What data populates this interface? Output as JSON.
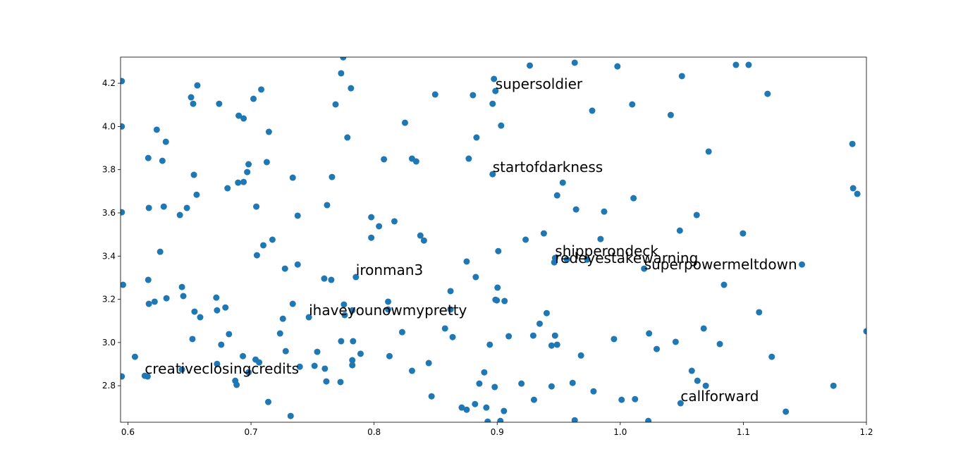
{
  "chart_data": {
    "type": "scatter",
    "color": "#1f77b4",
    "xlim": [
      0.594,
      1.2
    ],
    "ylim": [
      2.631,
      4.321
    ],
    "xticks": [
      0.6,
      0.7,
      0.8,
      0.9,
      {
        "value": 1.0,
        "label": "1.0"
      },
      1.1,
      1.2
    ],
    "yticks": [
      2.8,
      {
        "value": 3.0,
        "label": "3.0"
      },
      3.2,
      3.4,
      3.6,
      3.8,
      {
        "value": 4.0,
        "label": "4.0"
      },
      4.2
    ],
    "x": [
      0.595,
      0.595,
      0.595,
      0.596,
      0.595,
      0.6057,
      0.6137,
      0.616,
      0.6165,
      0.617,
      0.6165,
      0.617,
      0.6217,
      0.6234,
      0.6262,
      0.628,
      0.6291,
      0.6308,
      0.6313,
      0.6422,
      0.6439,
      0.6439,
      0.645,
      0.6479,
      0.6513,
      0.653,
      0.6536,
      0.6524,
      0.6541,
      0.6558,
      0.6564,
      0.6587,
      0.6741,
      0.6718,
      0.6724,
      0.6724,
      0.6758,
      0.6792,
      0.6809,
      0.6821,
      0.6872,
      0.6883,
      0.69,
      0.6895,
      0.694,
      0.694,
      0.6934,
      0.6969,
      0.698,
      0.698,
      0.702,
      0.7037,
      0.7043,
      0.7048,
      0.7066,
      0.7083,
      0.71,
      0.7128,
      0.7145,
      0.714,
      0.7174,
      0.7236,
      0.7259,
      0.7276,
      0.7282,
      0.7322,
      0.7339,
      0.7339,
      0.7379,
      0.7379,
      0.7396,
      0.747,
      0.7516,
      0.7538,
      0.7595,
      0.76,
      0.7612,
      0.7618,
      0.7652,
      0.7658,
      0.7687,
      0.7732,
      0.7727,
      0.7732,
      0.7749,
      0.7755,
      0.7761,
      0.7783,
      0.7812,
      0.7823,
      0.7823,
      0.7823,
      0.7829,
      0.7852,
      0.789,
      0.7977,
      0.7977,
      0.804,
      0.808,
      0.8114,
      0.8114,
      0.8125,
      0.8165,
      0.8228,
      0.8251,
      0.8308,
      0.8308,
      0.8342,
      0.8376,
      0.8405,
      0.8444,
      0.8467,
      0.8496,
      0.8576,
      0.8621,
      0.8621,
      0.8638,
      0.8712,
      0.8752,
      0.8752,
      0.8769,
      0.8803,
      0.882,
      0.8826,
      0.8832,
      0.8855,
      0.8895,
      0.8912,
      0.8923,
      0.894,
      0.8963,
      0.8963,
      0.8974,
      0.8986,
      0.898,
      0.8986,
      0.8997,
      0.9003,
      0.9009,
      0.9026,
      0.9032,
      0.9055,
      0.906,
      0.9094,
      0.9197,
      0.9231,
      0.9265,
      0.9293,
      0.9299,
      0.9345,
      0.9379,
      0.9402,
      0.9442,
      0.9442,
      0.9464,
      0.947,
      0.947,
      0.9487,
      0.9487,
      0.9533,
      0.9567,
      0.963,
      0.9613,
      0.963,
      0.9641,
      0.9681,
      0.9732,
      0.9772,
      0.9783,
      0.984,
      0.9869,
      0.9949,
      0.9977,
      1.0011,
      1.0097,
      1.0108,
      1.012,
      1.0194,
      1.0228,
      1.0234,
      1.0296,
      1.041,
      1.045,
      1.0484,
      1.049,
      1.0501,
      1.0581,
      1.0621,
      1.0627,
      1.0678,
      1.0695,
      1.0718,
      1.0809,
      1.0843,
      1.094,
      1.0997,
      1.1043,
      1.1128,
      1.1197,
      1.1231,
      1.1345,
      1.1476,
      1.1732,
      1.1886,
      1.1892,
      1.1926,
      1.2
    ],
    "values": [
      4.21,
      4.0,
      3.603,
      3.267,
      2.843,
      2.934,
      2.846,
      2.843,
      3.854,
      3.623,
      3.29,
      3.179,
      3.189,
      3.985,
      3.42,
      3.841,
      3.629,
      3.929,
      3.205,
      3.59,
      3.257,
      2.875,
      3.215,
      3.623,
      4.135,
      4.105,
      3.776,
      3.016,
      3.143,
      3.684,
      4.19,
      3.117,
      4.105,
      3.208,
      2.901,
      3.149,
      2.99,
      3.162,
      3.714,
      3.039,
      2.823,
      2.804,
      4.05,
      3.74,
      4.037,
      3.743,
      2.937,
      3.789,
      2.862,
      3.825,
      4.128,
      2.921,
      3.629,
      3.404,
      2.908,
      4.171,
      3.45,
      3.835,
      3.975,
      2.725,
      3.476,
      3.042,
      3.11,
      3.342,
      2.96,
      2.66,
      3.763,
      3.179,
      3.361,
      3.587,
      2.888,
      3.117,
      2.892,
      2.957,
      3.296,
      2.879,
      2.82,
      3.636,
      3.29,
      3.766,
      4.102,
      4.246,
      2.817,
      3.006,
      4.32,
      3.176,
      3.127,
      3.949,
      4.177,
      3.149,
      2.918,
      2.895,
      3.006,
      3.303,
      2.948,
      3.58,
      3.485,
      3.538,
      3.848,
      3.189,
      3.153,
      2.937,
      3.561,
      3.048,
      4.017,
      3.851,
      2.869,
      3.838,
      3.495,
      3.472,
      2.905,
      2.751,
      4.148,
      3.065,
      3.238,
      3.153,
      3.025,
      2.699,
      2.689,
      3.375,
      3.851,
      4.145,
      2.715,
      3.303,
      3.949,
      2.81,
      2.862,
      2.699,
      2.634,
      2.99,
      4.105,
      3.779,
      4.22,
      4.164,
      2.794,
      3.198,
      3.195,
      3.254,
      3.423,
      2.637,
      4.004,
      2.683,
      3.192,
      3.029,
      2.81,
      3.476,
      4.282,
      3.032,
      2.735,
      3.087,
      3.505,
      3.136,
      2.986,
      2.797,
      3.371,
      3.391,
      3.032,
      2.99,
      3.681,
      3.74,
      3.384,
      4.295,
      2.813,
      2.64,
      3.616,
      2.94,
      3.384,
      4.073,
      2.774,
      3.479,
      3.606,
      3.016,
      4.278,
      2.735,
      4.102,
      3.668,
      2.738,
      3.342,
      2.637,
      3.042,
      2.97,
      4.053,
      3.003,
      3.518,
      2.719,
      4.233,
      2.869,
      3.59,
      2.823,
      3.065,
      2.8,
      3.884,
      2.993,
      3.267,
      4.285,
      3.505,
      4.285,
      3.14,
      4.151,
      2.934,
      2.68,
      3.361,
      2.8,
      3.919,
      3.714,
      3.688,
      3.052
    ],
    "annotations": [
      {
        "text": "supersoldier",
        "x": 0.8986,
        "y": 4.164
      },
      {
        "text": "startofdarkness",
        "x": 0.8963,
        "y": 3.779
      },
      {
        "text": "shipperondeck",
        "x": 0.947,
        "y": 3.391
      },
      {
        "text": "redeyestakewarning",
        "x": 0.947,
        "y": 3.358
      },
      {
        "text": "superpowermeltdown",
        "x": 1.0194,
        "y": 3.329
      },
      {
        "text": "ironman3",
        "x": 0.7852,
        "y": 3.303
      },
      {
        "text": "ihaveyounowmypretty",
        "x": 0.747,
        "y": 3.117
      },
      {
        "text": "creativeclosingcredits",
        "x": 0.6137,
        "y": 2.846
      },
      {
        "text": "callforward",
        "x": 1.049,
        "y": 2.719
      }
    ]
  }
}
